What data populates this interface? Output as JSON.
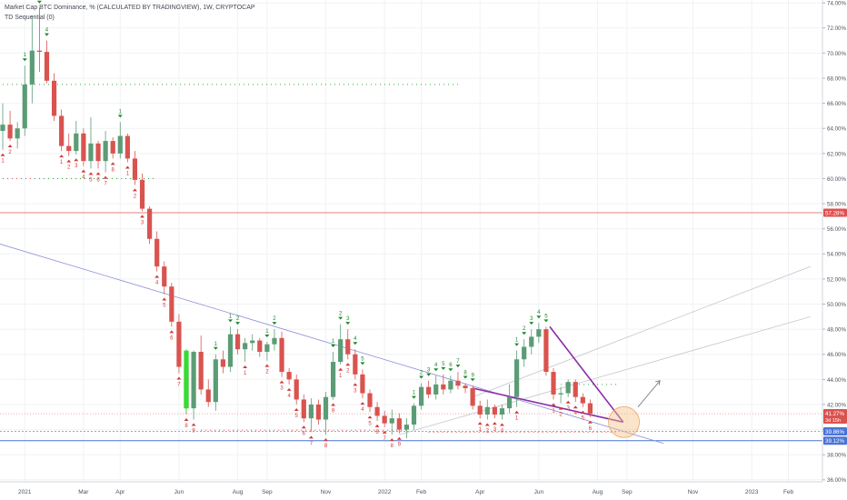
{
  "header": {
    "title": "Market Cap BTC Dominance, % (CALCULATED BY TRADINGVIEW), 1W, CRYPTOCAP",
    "indicator": "TD Sequential (0)"
  },
  "colors": {
    "up": "#5b9c76",
    "down": "#d9534f",
    "bright_up": "#33dd33",
    "trend_blue": "#8c8cd8",
    "channel_gray": "#c4c4cc",
    "triangle": "#8a2ba6",
    "level_red": "#e05050",
    "level_blue": "#4a74d6",
    "highlight": "#f5c48a",
    "axis_text": "#50535e"
  },
  "chart_data": {
    "type": "candlestick",
    "timeframe": "1W",
    "ylim": [
      36,
      74
    ],
    "yticks": [
      36,
      38,
      40,
      42,
      44,
      46,
      48,
      50,
      52,
      54,
      56,
      58,
      60,
      62,
      64,
      66,
      68,
      70,
      72,
      74
    ],
    "ytick_suffix": ".00%",
    "xticks": [
      {
        "label": "2021",
        "week": 3
      },
      {
        "label": "Mar",
        "week": 11
      },
      {
        "label": "Apr",
        "week": 16
      },
      {
        "label": "Jun",
        "week": 24
      },
      {
        "label": "Aug",
        "week": 32
      },
      {
        "label": "Sep",
        "week": 36
      },
      {
        "label": "Nov",
        "week": 44
      },
      {
        "label": "2022",
        "week": 52
      },
      {
        "label": "Feb",
        "week": 57
      },
      {
        "label": "Apr",
        "week": 65
      },
      {
        "label": "Jun",
        "week": 73
      },
      {
        "label": "Aug",
        "week": 81
      },
      {
        "label": "Sep",
        "week": 85
      },
      {
        "label": "Nov",
        "week": 94
      },
      {
        "label": "2023",
        "week": 102
      },
      {
        "label": "Feb",
        "week": 107
      }
    ],
    "candles": [
      {
        "o": 63.8,
        "h": 66.0,
        "l": 62.3,
        "c": 64.3
      },
      {
        "o": 64.3,
        "h": 65.4,
        "l": 63.0,
        "c": 63.2
      },
      {
        "o": 63.2,
        "h": 64.5,
        "l": 62.4,
        "c": 64.0
      },
      {
        "o": 64.0,
        "h": 69.0,
        "l": 63.4,
        "c": 67.5
      },
      {
        "o": 67.5,
        "h": 73.0,
        "l": 66.0,
        "c": 70.2
      },
      {
        "o": 70.2,
        "h": 73.6,
        "l": 68.5,
        "c": 70.1
      },
      {
        "o": 70.1,
        "h": 71.0,
        "l": 67.6,
        "c": 67.8
      },
      {
        "o": 67.8,
        "h": 68.4,
        "l": 64.6,
        "c": 65.0
      },
      {
        "o": 65.0,
        "h": 65.5,
        "l": 62.2,
        "c": 62.6
      },
      {
        "o": 62.6,
        "h": 63.6,
        "l": 61.8,
        "c": 62.2
      },
      {
        "o": 62.2,
        "h": 64.6,
        "l": 61.9,
        "c": 63.6
      },
      {
        "o": 63.6,
        "h": 64.0,
        "l": 61.0,
        "c": 61.4
      },
      {
        "o": 61.4,
        "h": 64.9,
        "l": 60.8,
        "c": 62.8
      },
      {
        "o": 62.8,
        "h": 63.0,
        "l": 60.8,
        "c": 61.4
      },
      {
        "o": 61.4,
        "h": 63.8,
        "l": 60.5,
        "c": 63.0
      },
      {
        "o": 63.0,
        "h": 63.3,
        "l": 61.6,
        "c": 62.0
      },
      {
        "o": 62.0,
        "h": 64.5,
        "l": 61.6,
        "c": 63.4
      },
      {
        "o": 63.4,
        "h": 63.6,
        "l": 61.3,
        "c": 61.6
      },
      {
        "o": 61.6,
        "h": 62.2,
        "l": 59.5,
        "c": 59.9
      },
      {
        "o": 59.9,
        "h": 60.4,
        "l": 57.4,
        "c": 57.6
      },
      {
        "o": 57.6,
        "h": 57.8,
        "l": 54.8,
        "c": 55.2
      },
      {
        "o": 55.2,
        "h": 55.8,
        "l": 52.6,
        "c": 53.0
      },
      {
        "o": 53.0,
        "h": 53.4,
        "l": 50.8,
        "c": 51.4
      },
      {
        "o": 51.4,
        "h": 51.7,
        "l": 48.2,
        "c": 48.6
      },
      {
        "o": 48.6,
        "h": 49.2,
        "l": 44.5,
        "c": 45.0
      },
      {
        "o": 45.0,
        "h": 46.0,
        "l": 41.2,
        "c": 41.7
      },
      {
        "o": 41.7,
        "h": 46.3,
        "l": 40.8,
        "c": 46.2
      },
      {
        "o": 46.2,
        "h": 47.5,
        "l": 42.8,
        "c": 43.2
      },
      {
        "o": 43.2,
        "h": 44.0,
        "l": 41.8,
        "c": 42.2
      },
      {
        "o": 42.2,
        "h": 46.0,
        "l": 41.5,
        "c": 45.6
      },
      {
        "o": 45.6,
        "h": 46.3,
        "l": 44.5,
        "c": 45.0
      },
      {
        "o": 45.0,
        "h": 48.2,
        "l": 44.6,
        "c": 47.6
      },
      {
        "o": 47.6,
        "h": 48.0,
        "l": 46.0,
        "c": 46.4
      },
      {
        "o": 46.4,
        "h": 47.3,
        "l": 45.4,
        "c": 46.9
      },
      {
        "o": 46.9,
        "h": 47.6,
        "l": 46.3,
        "c": 47.1
      },
      {
        "o": 47.1,
        "h": 47.3,
        "l": 45.8,
        "c": 46.2
      },
      {
        "o": 46.2,
        "h": 47.0,
        "l": 45.5,
        "c": 46.8
      },
      {
        "o": 46.8,
        "h": 48.0,
        "l": 46.3,
        "c": 47.3
      },
      {
        "o": 47.3,
        "h": 47.8,
        "l": 44.2,
        "c": 44.6
      },
      {
        "o": 44.6,
        "h": 44.9,
        "l": 43.6,
        "c": 44.0
      },
      {
        "o": 44.0,
        "h": 44.4,
        "l": 42.0,
        "c": 42.4
      },
      {
        "o": 42.4,
        "h": 42.8,
        "l": 40.6,
        "c": 40.9
      },
      {
        "o": 40.9,
        "h": 42.5,
        "l": 39.8,
        "c": 42.0
      },
      {
        "o": 42.0,
        "h": 42.4,
        "l": 40.4,
        "c": 40.8
      },
      {
        "o": 40.8,
        "h": 43.0,
        "l": 39.6,
        "c": 42.6
      },
      {
        "o": 42.6,
        "h": 46.2,
        "l": 42.4,
        "c": 45.4
      },
      {
        "o": 45.4,
        "h": 48.4,
        "l": 45.2,
        "c": 47.2
      },
      {
        "o": 47.2,
        "h": 48.0,
        "l": 45.6,
        "c": 46.0
      },
      {
        "o": 46.0,
        "h": 46.4,
        "l": 44.0,
        "c": 44.4
      },
      {
        "o": 44.4,
        "h": 44.8,
        "l": 42.5,
        "c": 42.9
      },
      {
        "o": 42.9,
        "h": 43.2,
        "l": 41.4,
        "c": 41.8
      },
      {
        "o": 41.8,
        "h": 42.2,
        "l": 40.7,
        "c": 41.1
      },
      {
        "o": 41.1,
        "h": 41.5,
        "l": 40.2,
        "c": 40.5
      },
      {
        "o": 40.5,
        "h": 41.6,
        "l": 39.6,
        "c": 40.9
      },
      {
        "o": 40.9,
        "h": 41.3,
        "l": 39.7,
        "c": 40.0
      },
      {
        "o": 40.0,
        "h": 40.9,
        "l": 39.3,
        "c": 40.4
      },
      {
        "o": 40.4,
        "h": 42.1,
        "l": 40.0,
        "c": 41.9
      },
      {
        "o": 41.9,
        "h": 43.7,
        "l": 41.6,
        "c": 43.4
      },
      {
        "o": 43.4,
        "h": 43.9,
        "l": 42.5,
        "c": 42.8
      },
      {
        "o": 42.8,
        "h": 44.3,
        "l": 42.4,
        "c": 43.6
      },
      {
        "o": 43.6,
        "h": 44.4,
        "l": 42.8,
        "c": 43.2
      },
      {
        "o": 43.2,
        "h": 44.3,
        "l": 42.9,
        "c": 43.9
      },
      {
        "o": 43.9,
        "h": 44.6,
        "l": 43.2,
        "c": 43.5
      },
      {
        "o": 43.5,
        "h": 43.7,
        "l": 42.9,
        "c": 43.3
      },
      {
        "o": 43.3,
        "h": 43.5,
        "l": 41.6,
        "c": 41.9
      },
      {
        "o": 41.9,
        "h": 42.3,
        "l": 40.9,
        "c": 41.2
      },
      {
        "o": 41.2,
        "h": 42.4,
        "l": 40.8,
        "c": 41.8
      },
      {
        "o": 41.8,
        "h": 42.0,
        "l": 40.9,
        "c": 41.2
      },
      {
        "o": 41.2,
        "h": 42.0,
        "l": 40.8,
        "c": 41.7
      },
      {
        "o": 41.7,
        "h": 43.6,
        "l": 41.3,
        "c": 42.6
      },
      {
        "o": 42.6,
        "h": 46.3,
        "l": 41.8,
        "c": 45.6
      },
      {
        "o": 45.6,
        "h": 47.2,
        "l": 45.0,
        "c": 46.6
      },
      {
        "o": 46.6,
        "h": 48.0,
        "l": 46.0,
        "c": 47.4
      },
      {
        "o": 47.4,
        "h": 48.5,
        "l": 46.9,
        "c": 48.0
      },
      {
        "o": 48.0,
        "h": 48.2,
        "l": 44.3,
        "c": 44.6
      },
      {
        "o": 44.6,
        "h": 44.9,
        "l": 42.4,
        "c": 42.8
      },
      {
        "o": 42.8,
        "h": 43.4,
        "l": 42.1,
        "c": 42.9
      },
      {
        "o": 42.9,
        "h": 44.0,
        "l": 42.6,
        "c": 43.8
      },
      {
        "o": 43.8,
        "h": 44.0,
        "l": 42.2,
        "c": 42.6
      },
      {
        "o": 42.6,
        "h": 42.9,
        "l": 41.8,
        "c": 42.1
      },
      {
        "o": 42.1,
        "h": 42.4,
        "l": 41.0,
        "c": 41.28
      }
    ],
    "bright_candle": {
      "index": 25,
      "o": 41.7,
      "h": 46.4,
      "l": 41.3,
      "c": 46.3
    },
    "level_lines": [
      {
        "value": 57.28,
        "label": "57.28%",
        "color": "#e05050"
      },
      {
        "value": 41.27,
        "label": "41.27%",
        "sublabel": "3d 15h",
        "color": "#d9534f"
      },
      {
        "value": 39.86,
        "label": "39.86%",
        "color": "#4a74d6"
      },
      {
        "value": 39.12,
        "label": "39.12%",
        "color": "#4a74d6"
      }
    ],
    "td_labels": [
      {
        "w": 0,
        "t": "1",
        "dir": "dn"
      },
      {
        "w": 1,
        "t": "2",
        "dir": "dn"
      },
      {
        "w": 3,
        "t": "1",
        "dir": "up"
      },
      {
        "w": 5,
        "t": "3",
        "dir": "up"
      },
      {
        "w": 6,
        "t": "4",
        "dir": "up"
      },
      {
        "w": 8,
        "t": "1",
        "dir": "dn"
      },
      {
        "w": 9,
        "t": "2",
        "dir": "dn"
      },
      {
        "w": 10,
        "t": "3",
        "dir": "dn"
      },
      {
        "w": 11,
        "t": "4",
        "dir": "dn"
      },
      {
        "w": 12,
        "t": "5",
        "dir": "dn"
      },
      {
        "w": 13,
        "t": "6",
        "dir": "dn"
      },
      {
        "w": 14,
        "t": "7",
        "dir": "dn"
      },
      {
        "w": 15,
        "t": "8",
        "dir": "dn"
      },
      {
        "w": 16,
        "t": "1",
        "dir": "up"
      },
      {
        "w": 17,
        "t": "1",
        "dir": "dn"
      },
      {
        "w": 18,
        "t": "2",
        "dir": "dn"
      },
      {
        "w": 19,
        "t": "3",
        "dir": "dn"
      },
      {
        "w": 21,
        "t": "4",
        "dir": "dn"
      },
      {
        "w": 22,
        "t": "5",
        "dir": "dn"
      },
      {
        "w": 23,
        "t": "6",
        "dir": "dn"
      },
      {
        "w": 24,
        "t": "7",
        "dir": "dn"
      },
      {
        "w": 25,
        "t": "8",
        "dir": "dn"
      },
      {
        "w": 26,
        "t": "9",
        "dir": "dn"
      },
      {
        "w": 29,
        "t": "1",
        "dir": "up"
      },
      {
        "w": 31,
        "t": "1",
        "dir": "up"
      },
      {
        "w": 32,
        "t": "2",
        "dir": "up"
      },
      {
        "w": 36,
        "t": "1",
        "dir": "up"
      },
      {
        "w": 37,
        "t": "2",
        "dir": "up"
      },
      {
        "w": 33,
        "t": "1",
        "dir": "dn"
      },
      {
        "w": 36,
        "t": "2",
        "dir": "dn"
      },
      {
        "w": 38,
        "t": "3",
        "dir": "dn"
      },
      {
        "w": 39,
        "t": "4",
        "dir": "dn"
      },
      {
        "w": 40,
        "t": "5",
        "dir": "dn"
      },
      {
        "w": 41,
        "t": "6",
        "dir": "dn"
      },
      {
        "w": 42,
        "t": "7",
        "dir": "dn"
      },
      {
        "w": 44,
        "t": "8",
        "dir": "dn"
      },
      {
        "w": 45,
        "t": "9",
        "dir": "dn"
      },
      {
        "w": 45,
        "t": "1",
        "dir": "up"
      },
      {
        "w": 46,
        "t": "2",
        "dir": "up"
      },
      {
        "w": 47,
        "t": "3",
        "dir": "up"
      },
      {
        "w": 48,
        "t": "4",
        "dir": "up"
      },
      {
        "w": 49,
        "t": "5",
        "dir": "up"
      },
      {
        "w": 46,
        "t": "1",
        "dir": "dn"
      },
      {
        "w": 47,
        "t": "2",
        "dir": "dn"
      },
      {
        "w": 48,
        "t": "3",
        "dir": "dn"
      },
      {
        "w": 49,
        "t": "4",
        "dir": "dn"
      },
      {
        "w": 50,
        "t": "5",
        "dir": "dn"
      },
      {
        "w": 51,
        "t": "6",
        "dir": "dn"
      },
      {
        "w": 52,
        "t": "7",
        "dir": "dn"
      },
      {
        "w": 53,
        "t": "8",
        "dir": "dn"
      },
      {
        "w": 54,
        "t": "9",
        "dir": "dn"
      },
      {
        "w": 56,
        "t": "1",
        "dir": "up"
      },
      {
        "w": 57,
        "t": "2",
        "dir": "up"
      },
      {
        "w": 58,
        "t": "3",
        "dir": "up"
      },
      {
        "w": 59,
        "t": "4",
        "dir": "up"
      },
      {
        "w": 60,
        "t": "5",
        "dir": "up"
      },
      {
        "w": 61,
        "t": "6",
        "dir": "up"
      },
      {
        "w": 62,
        "t": "7",
        "dir": "up"
      },
      {
        "w": 63,
        "t": "8",
        "dir": "up"
      },
      {
        "w": 64,
        "t": "9",
        "dir": "up"
      },
      {
        "w": 65,
        "t": "1",
        "dir": "dn"
      },
      {
        "w": 66,
        "t": "2",
        "dir": "dn"
      },
      {
        "w": 67,
        "t": "3",
        "dir": "dn"
      },
      {
        "w": 68,
        "t": "4",
        "dir": "dn"
      },
      {
        "w": 70,
        "t": "1",
        "dir": "dn"
      },
      {
        "w": 70,
        "t": "1",
        "dir": "up"
      },
      {
        "w": 71,
        "t": "2",
        "dir": "up"
      },
      {
        "w": 72,
        "t": "3",
        "dir": "up"
      },
      {
        "w": 73,
        "t": "4",
        "dir": "up"
      },
      {
        "w": 74,
        "t": "5",
        "dir": "up"
      },
      {
        "w": 75,
        "t": "1",
        "dir": "dn"
      },
      {
        "w": 76,
        "t": "2",
        "dir": "dn"
      },
      {
        "w": 77,
        "t": "3",
        "dir": "dn"
      },
      {
        "w": 78,
        "t": "4",
        "dir": "dn"
      },
      {
        "w": 79,
        "t": "5",
        "dir": "dn"
      },
      {
        "w": 80,
        "t": "6",
        "dir": "dn"
      },
      {
        "w": 81,
        "t": "7",
        "dir": "dn"
      },
      {
        "w": 82,
        "t": "8",
        "dir": "dn"
      }
    ],
    "trendlines": [
      {
        "name": "long-downtrend",
        "from": [
          -1,
          54.9
        ],
        "to": [
          90,
          38.9
        ],
        "color": "#8c8cd8"
      },
      {
        "name": "channel-lower",
        "from": [
          54,
          39.6
        ],
        "to": [
          110,
          49.0
        ],
        "color": "#c4c4cc"
      },
      {
        "name": "channel-upper",
        "from": [
          64,
          42.6
        ],
        "to": [
          110,
          53.0
        ],
        "color": "#c4c4cc"
      },
      {
        "name": "triangle-left",
        "from": [
          64,
          43.3
        ],
        "to": [
          84.5,
          40.6
        ],
        "color": "#8a2ba6"
      },
      {
        "name": "triangle-right",
        "from": [
          74.5,
          48.2
        ],
        "to": [
          84.5,
          40.6
        ],
        "color": "#8a2ba6"
      }
    ],
    "dotted_levels": [
      {
        "value": 67.5,
        "from": 0,
        "to": 62,
        "color": "#33aa33"
      },
      {
        "value": 60.0,
        "from": 0,
        "to": 21,
        "color": "#33aa33"
      },
      {
        "value": 60.0,
        "from": 0,
        "to": 4,
        "color": "#d9534f"
      },
      {
        "value": 39.95,
        "from": 27,
        "to": 55,
        "color": "#d9534f"
      },
      {
        "value": 39.8,
        "from": 58,
        "to": 84,
        "color": "#d9534f"
      },
      {
        "value": 43.6,
        "from": 76,
        "to": 84,
        "color": "#33aa33"
      }
    ],
    "arrow": {
      "from": [
        86.5,
        41.8
      ],
      "to": [
        89.5,
        43.9
      ]
    },
    "highlight_circle": {
      "center": [
        84.6,
        40.6
      ]
    }
  }
}
